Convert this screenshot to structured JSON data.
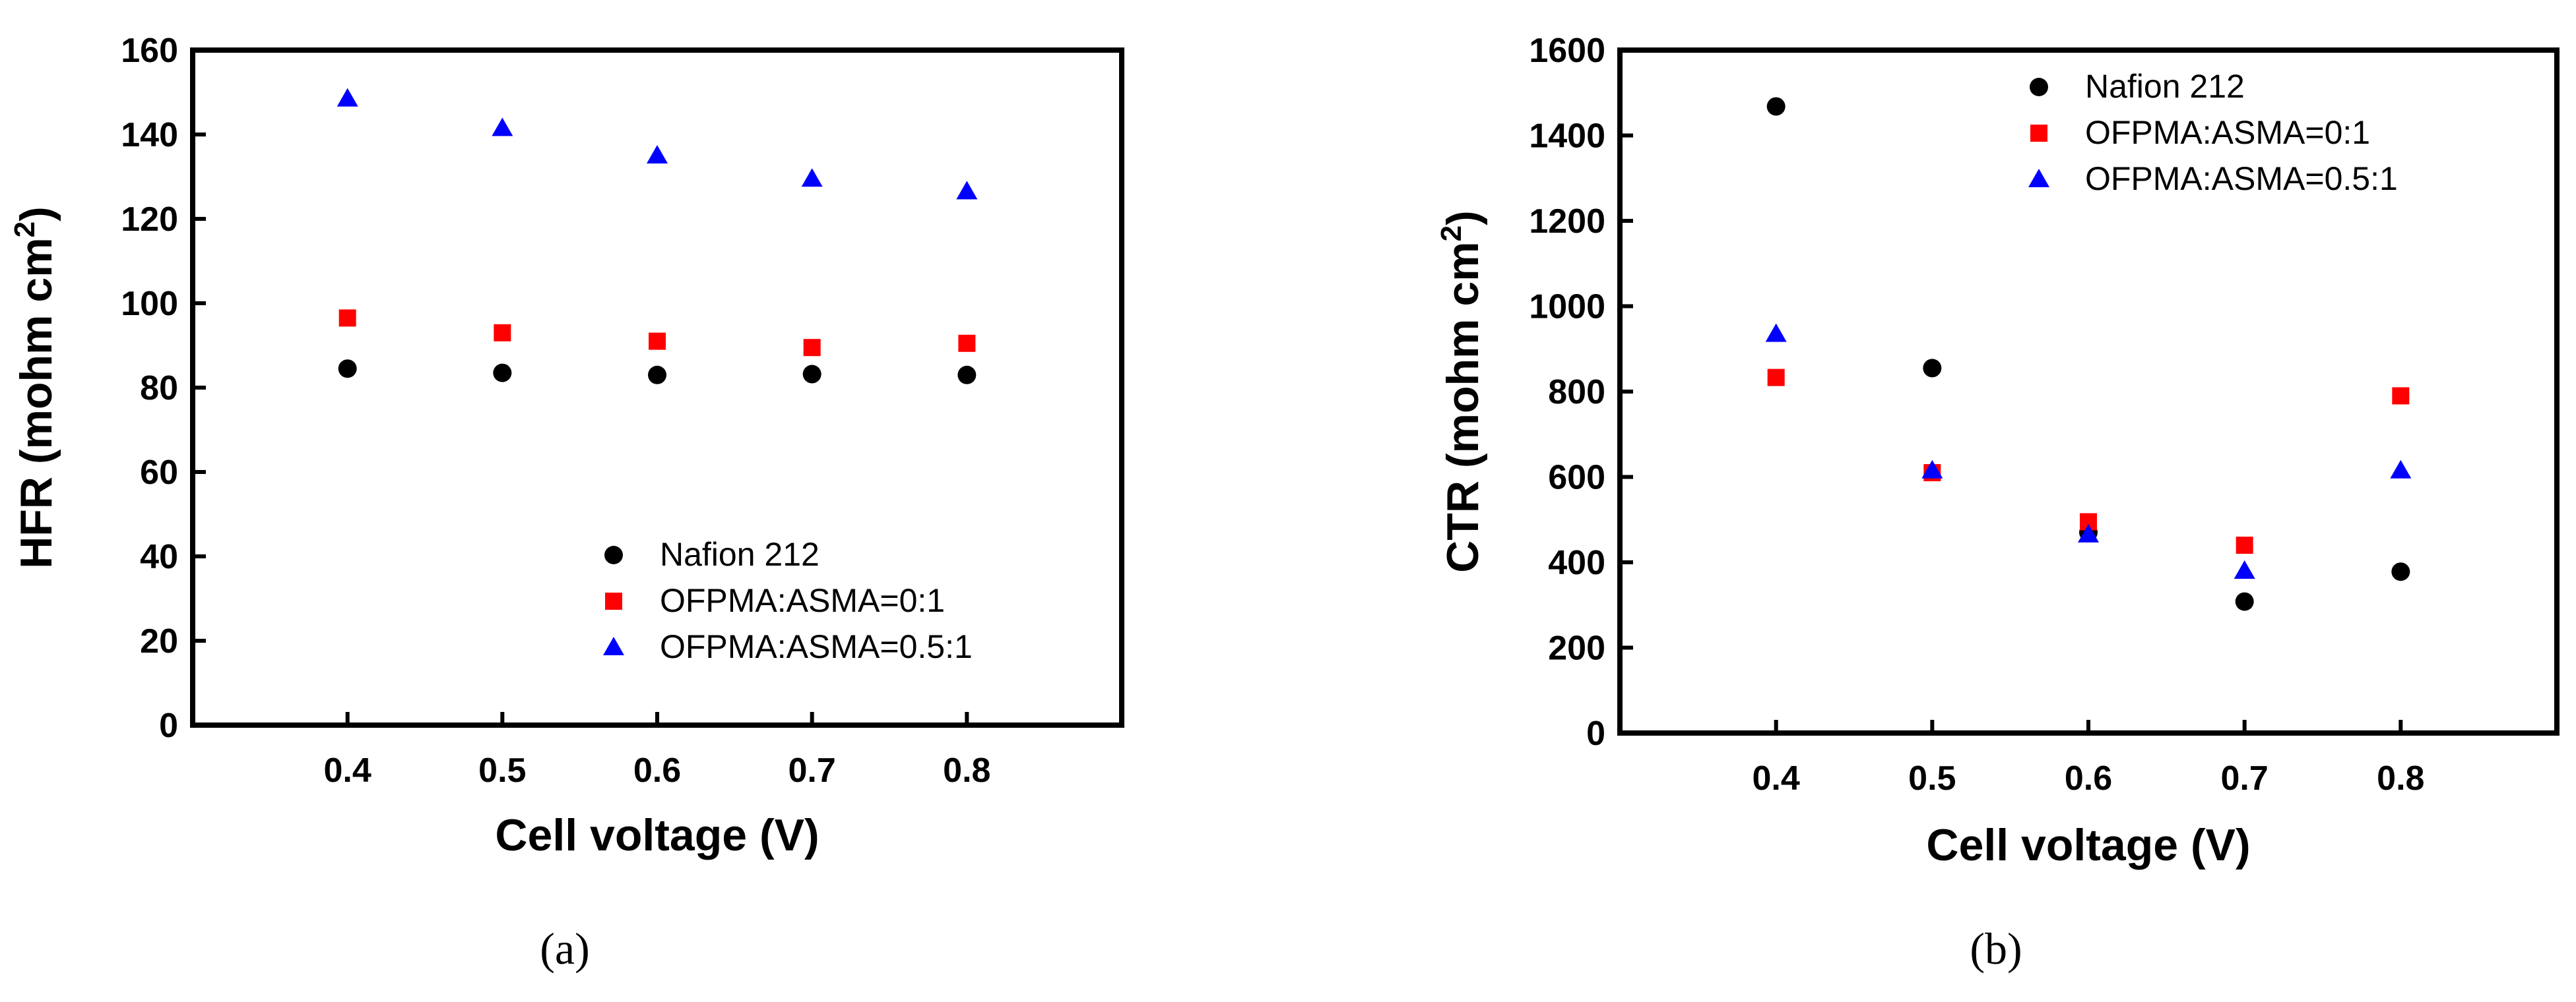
{
  "colors": {
    "axis": "#000000",
    "nafion": "#000000",
    "ratio0": "#ff0000",
    "ratio05": "#0000ff"
  },
  "chart_data": [
    {
      "id": "a",
      "type": "scatter",
      "panel_label": "(a)",
      "xlabel": "Cell voltage (V)",
      "ylabel": {
        "main": "HFR (mohm cm",
        "sup": "2",
        "end": ")"
      },
      "xlim": [
        0.3,
        0.9
      ],
      "ylim": [
        0,
        160
      ],
      "xticks": [
        0.4,
        0.5,
        0.6,
        0.7,
        0.8
      ],
      "xtick_labels": [
        "0.4",
        "0.5",
        "0.6",
        "0.7",
        "0.8"
      ],
      "yticks": [
        0,
        20,
        40,
        60,
        80,
        100,
        120,
        140,
        160
      ],
      "ytick_labels": [
        "0",
        "20",
        "40",
        "60",
        "80",
        "100",
        "120",
        "140",
        "160"
      ],
      "legend_position": "bottom-right",
      "x": [
        0.4,
        0.5,
        0.6,
        0.7,
        0.8
      ],
      "series": [
        {
          "name": "Nafion 212",
          "marker": "circle",
          "color": "#000000",
          "values": [
            84.5,
            83.5,
            83,
            83.2,
            83
          ]
        },
        {
          "name": "OFPMA:ASMA=0:1",
          "marker": "square",
          "color": "#ff0000",
          "values": [
            96.5,
            93,
            91,
            89.5,
            90.5
          ]
        },
        {
          "name": "OFPMA:ASMA=0.5:1",
          "marker": "triangle",
          "color": "#0000ff",
          "values": [
            148.5,
            141.5,
            135,
            129.5,
            126.5
          ]
        }
      ]
    },
    {
      "id": "b",
      "type": "scatter",
      "panel_label": "(b)",
      "xlabel": "Cell voltage (V)",
      "ylabel": {
        "main": "CTR (mohm cm",
        "sup": "2",
        "end": ")"
      },
      "xlim": [
        0.3,
        0.9
      ],
      "ylim": [
        0,
        1600
      ],
      "xticks": [
        0.4,
        0.5,
        0.6,
        0.7,
        0.8
      ],
      "xtick_labels": [
        "0.4",
        "0.5",
        "0.6",
        "0.7",
        "0.8"
      ],
      "yticks": [
        0,
        200,
        400,
        600,
        800,
        1000,
        1200,
        1400,
        1600
      ],
      "ytick_labels": [
        "0",
        "200",
        "400",
        "600",
        "800",
        "1000",
        "1200",
        "1400",
        "1600"
      ],
      "legend_position": "top-right",
      "x": [
        0.4,
        0.5,
        0.6,
        0.7,
        0.8
      ],
      "series": [
        {
          "name": "Nafion 212",
          "marker": "circle",
          "color": "#000000",
          "values": [
            1468,
            855,
            470,
            308,
            378
          ]
        },
        {
          "name": "OFPMA:ASMA=0:1",
          "marker": "square",
          "color": "#ff0000",
          "values": [
            833,
            610,
            495,
            440,
            790
          ]
        },
        {
          "name": "OFPMA:ASMA=0.5:1",
          "marker": "triangle",
          "color": "#0000ff",
          "values": [
            935,
            615,
            465,
            380,
            615
          ]
        }
      ]
    }
  ]
}
